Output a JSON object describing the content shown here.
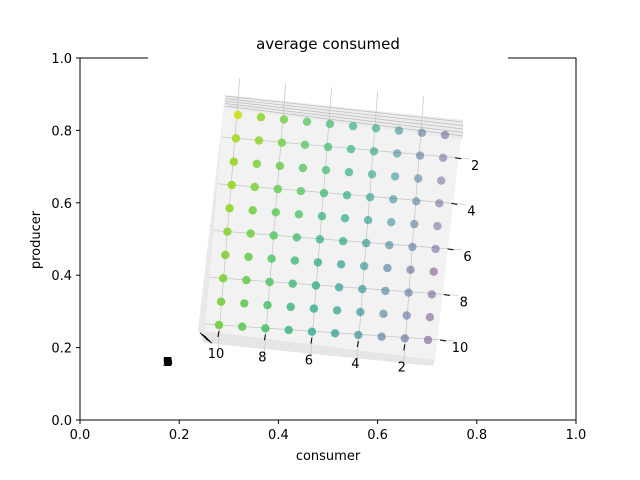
{
  "chart_data": {
    "type": "scatter",
    "title": "average consumed",
    "xlabel": "consumer",
    "ylabel": "producer",
    "outer_axes": {
      "xlim": [
        0,
        1
      ],
      "ylim": [
        0,
        1
      ],
      "xticks": [
        "0.0",
        "0.2",
        "0.4",
        "0.6",
        "0.8",
        "1.0"
      ],
      "yticks": [
        "0.0",
        "0.2",
        "0.4",
        "0.6",
        "0.8",
        "1.0"
      ]
    },
    "inner_3d_axes": {
      "x_ticks": [
        "10",
        "8",
        "6",
        "4",
        "2"
      ],
      "y_ticks": [
        "2",
        "4",
        "6",
        "8",
        "10"
      ],
      "z_ticks_overlapping": "0.50 0.75 1.00 1.25",
      "grid": true
    },
    "colormap": "viridis",
    "points": {
      "x": [
        1,
        2,
        3,
        4,
        5,
        6,
        7,
        8,
        9,
        10
      ],
      "y": [
        1,
        2,
        3,
        4,
        5,
        6,
        7,
        8,
        9,
        10
      ],
      "values": [
        [
          0.15,
          0.3,
          0.45,
          0.6,
          0.65,
          0.7,
          0.75,
          0.8,
          0.85,
          0.93
        ],
        [
          0.18,
          0.32,
          0.45,
          0.58,
          0.65,
          0.7,
          0.75,
          0.8,
          0.85,
          0.88
        ],
        [
          0.2,
          0.35,
          0.47,
          0.58,
          0.64,
          0.7,
          0.74,
          0.78,
          0.82,
          0.86
        ],
        [
          0.16,
          0.33,
          0.44,
          0.55,
          0.62,
          0.68,
          0.74,
          0.78,
          0.82,
          0.86
        ],
        [
          0.18,
          0.3,
          0.44,
          0.54,
          0.6,
          0.66,
          0.72,
          0.76,
          0.8,
          0.85
        ],
        [
          0.15,
          0.28,
          0.4,
          0.5,
          0.58,
          0.64,
          0.7,
          0.75,
          0.8,
          0.84
        ],
        [
          0.05,
          0.22,
          0.36,
          0.48,
          0.56,
          0.62,
          0.68,
          0.74,
          0.79,
          0.83
        ],
        [
          0.1,
          0.25,
          0.37,
          0.48,
          0.56,
          0.62,
          0.68,
          0.73,
          0.78,
          0.82
        ],
        [
          0.1,
          0.24,
          0.36,
          0.46,
          0.54,
          0.6,
          0.66,
          0.72,
          0.77,
          0.81
        ],
        [
          0.08,
          0.22,
          0.34,
          0.45,
          0.53,
          0.6,
          0.66,
          0.71,
          0.76,
          0.8
        ]
      ]
    }
  }
}
